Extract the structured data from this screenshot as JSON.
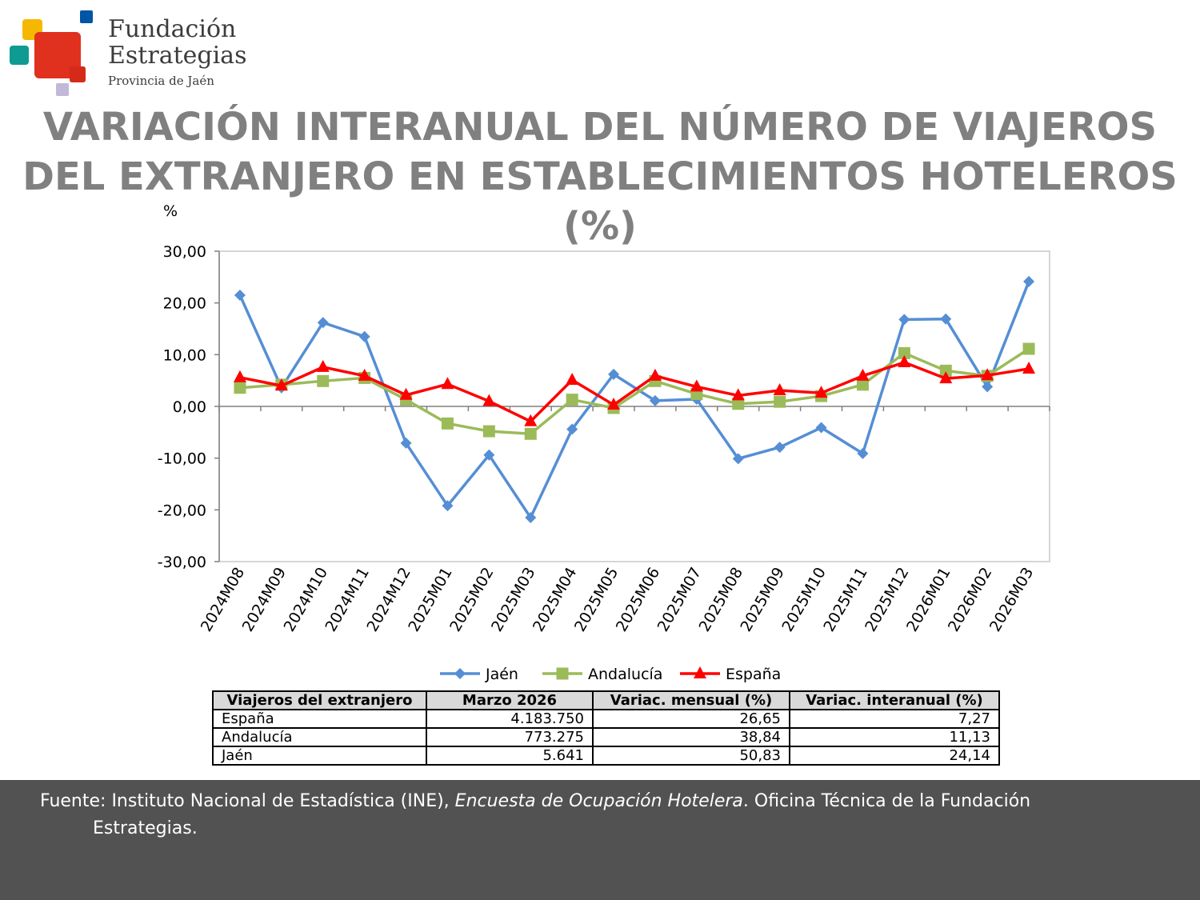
{
  "logo": {
    "name_line1": "Fundación",
    "name_line2": "Estrategias",
    "subtitle": "Provincia de Jaén",
    "colors": [
      "#f5b800",
      "#e0301e",
      "#0f9a92",
      "#0055a4",
      "#c2b8d8"
    ]
  },
  "title": "VARIACIÓN INTERANUAL DEL NÚMERO DE VIAJEROS DEL EXTRANJERO EN ESTABLECIMIENTOS HOTELEROS (%)",
  "chart_data": {
    "type": "line",
    "ylabel": "%",
    "ylim": [
      -30,
      30
    ],
    "yticks": [
      "30,00",
      "20,00",
      "10,00",
      "0,00",
      "-10,00",
      "-20,00",
      "-30,00"
    ],
    "categories": [
      "2024M08",
      "2024M09",
      "2024M10",
      "2024M11",
      "2024M12",
      "2025M01",
      "2025M02",
      "2025M03",
      "2025M04",
      "2025M05",
      "2025M06",
      "2025M07",
      "2025M08",
      "2025M09",
      "2025M10",
      "2025M11",
      "2025M12",
      "2026M01",
      "2026M02",
      "2026M03"
    ],
    "series": [
      {
        "name": "Jaén",
        "color": "#558ed5",
        "marker": "diamond",
        "values": [
          21.5,
          3.6,
          16.2,
          13.5,
          -7.1,
          -19.2,
          -9.4,
          -21.5,
          -4.4,
          6.2,
          1.1,
          1.4,
          -10.1,
          -7.9,
          -4.1,
          -9.1,
          16.8,
          16.9,
          3.8,
          24.14
        ]
      },
      {
        "name": "Andalucía",
        "color": "#9bbb59",
        "marker": "square",
        "values": [
          3.6,
          4.2,
          4.9,
          5.5,
          1.3,
          -3.3,
          -4.8,
          -5.3,
          1.3,
          -0.3,
          4.9,
          2.4,
          0.5,
          0.9,
          2.0,
          4.2,
          10.3,
          6.9,
          5.9,
          11.13
        ]
      },
      {
        "name": "España",
        "color": "#ff0000",
        "marker": "triangle",
        "values": [
          5.6,
          4.0,
          7.6,
          5.9,
          2.2,
          4.3,
          1.0,
          -2.9,
          5.1,
          0.3,
          5.9,
          3.8,
          2.1,
          3.1,
          2.6,
          5.9,
          8.5,
          5.4,
          6.0,
          7.27
        ]
      }
    ],
    "legend_position": "bottom",
    "grid": false
  },
  "table": {
    "headers": [
      "Viajeros del extranjero",
      "Marzo 2026",
      "Variac. mensual (%)",
      "Variac. interanual (%)"
    ],
    "rows": [
      [
        "España",
        "4.183.750",
        "26,65",
        "7,27"
      ],
      [
        "Andalucía",
        "773.275",
        "38,84",
        "11,13"
      ],
      [
        "Jaén",
        "5.641",
        "50,83",
        "24,14"
      ]
    ]
  },
  "footer": {
    "source_prefix": "Fuente: Instituto Nacional de Estadística (INE), ",
    "source_italic": "Encuesta de Ocupación Hotelera",
    "source_suffix": ". Oficina Técnica de la Fundación",
    "source_line2": "Estrategias."
  }
}
